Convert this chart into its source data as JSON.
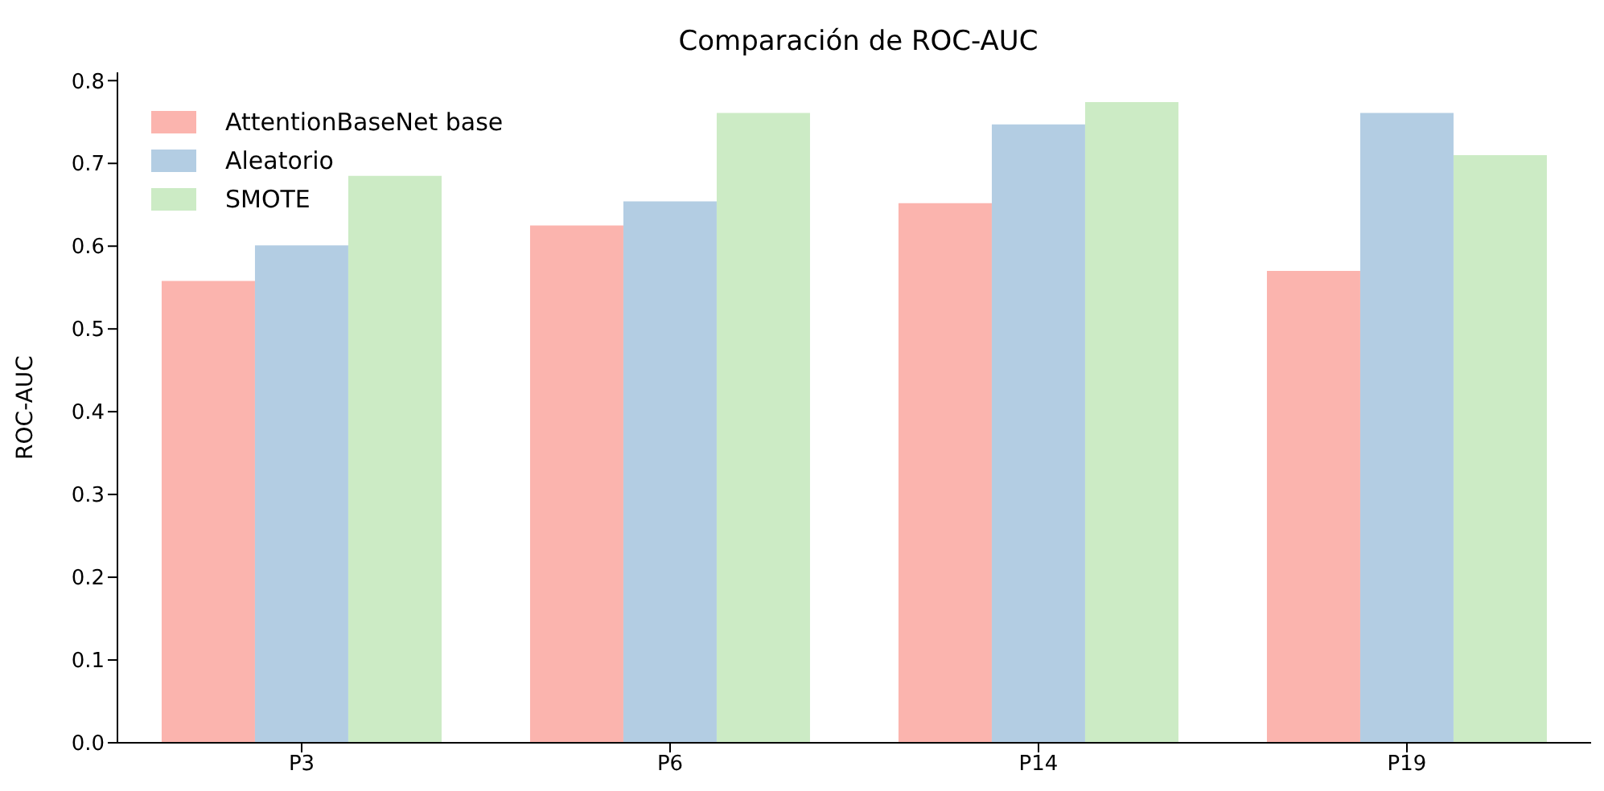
{
  "chart_data": {
    "type": "bar",
    "title": "Comparación de ROC-AUC",
    "ylabel": "ROC-AUC",
    "categories": [
      "P3",
      "P6",
      "P14",
      "P19"
    ],
    "series": [
      {
        "name": "AttentionBaseNet base",
        "color": "#fbb4ae",
        "values": [
          0.558,
          0.625,
          0.652,
          0.57
        ]
      },
      {
        "name": "Aleatorio",
        "color": "#b3cde3",
        "values": [
          0.601,
          0.654,
          0.747,
          0.761
        ]
      },
      {
        "name": "SMOTE",
        "color": "#ccebc5",
        "values": [
          0.685,
          0.761,
          0.774,
          0.71
        ]
      }
    ],
    "ylim": [
      0,
      0.81
    ],
    "yticks": [
      {
        "value": 0,
        "label": "0.0"
      },
      {
        "value": 0.1,
        "label": "0.1"
      },
      {
        "value": 0.2,
        "label": "0.2"
      },
      {
        "value": 0.3,
        "label": "0.3"
      },
      {
        "value": 0.4,
        "label": "0.4"
      },
      {
        "value": 0.5,
        "label": "0.5"
      },
      {
        "value": 0.6,
        "label": "0.6"
      },
      {
        "value": 0.7,
        "label": "0.7"
      },
      {
        "value": 0.8,
        "label": "0.8"
      }
    ],
    "grid": false,
    "legend": "top left"
  }
}
